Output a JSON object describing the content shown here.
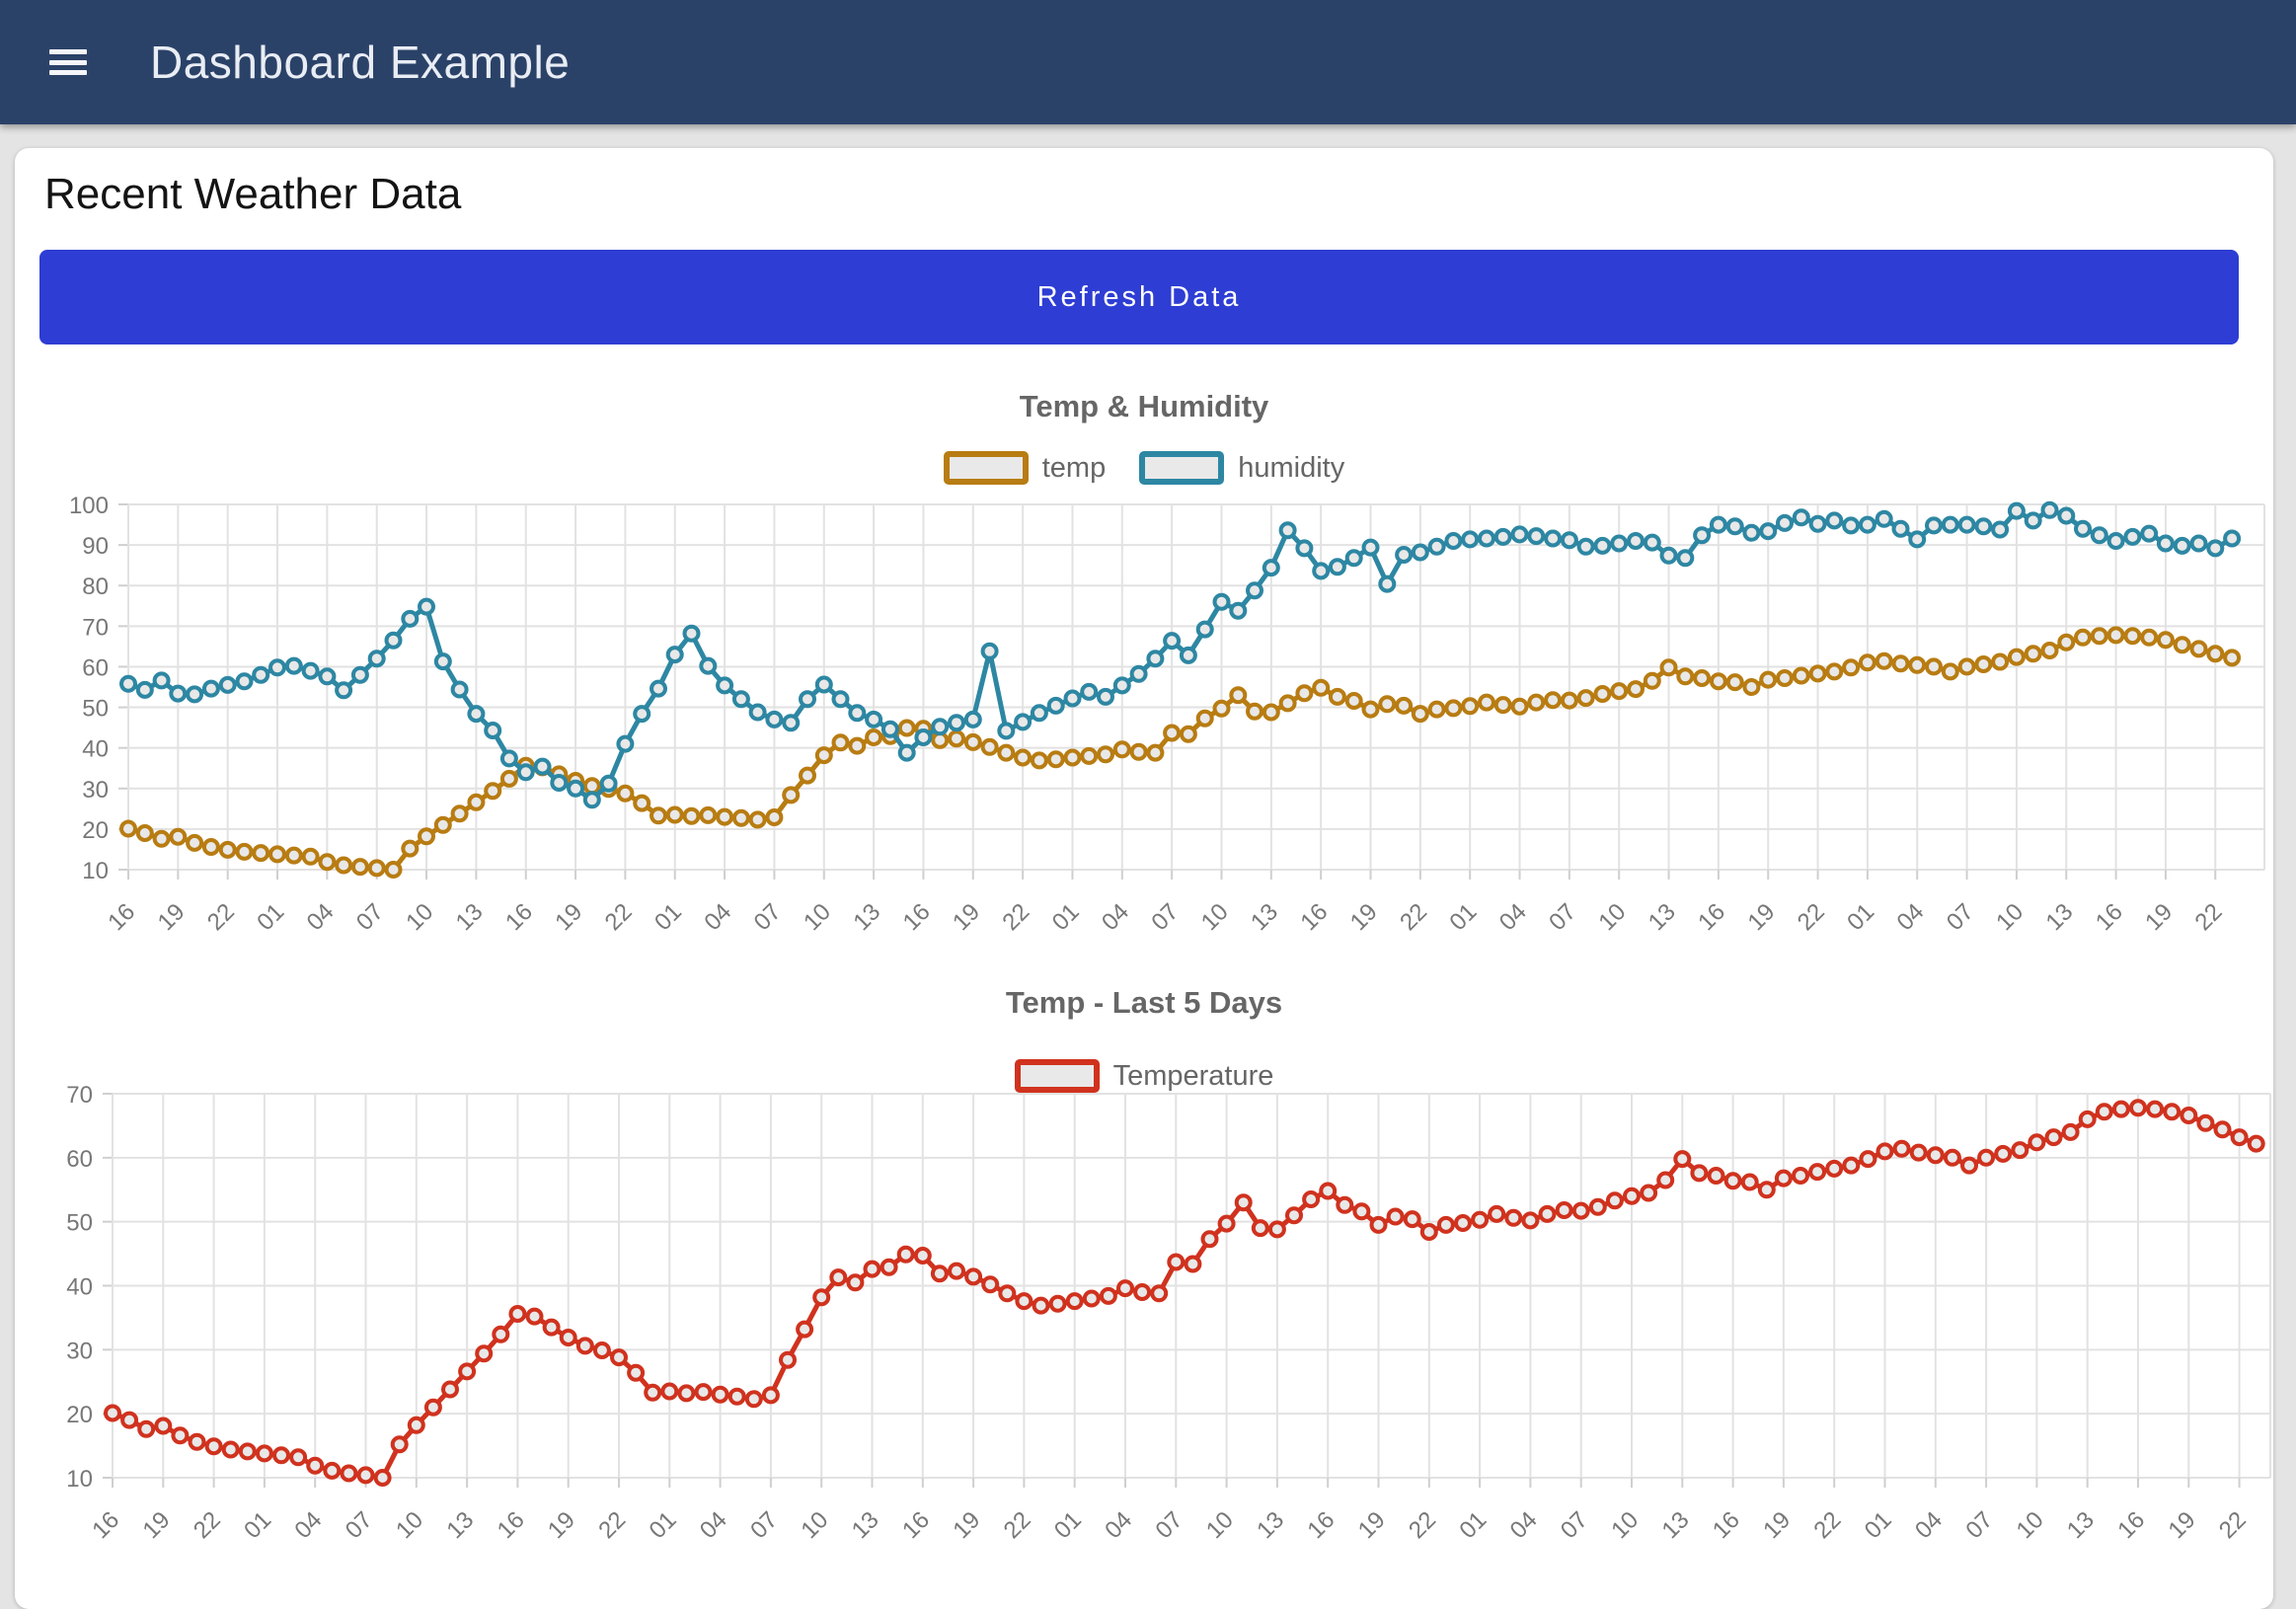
{
  "header": {
    "title": "Dashboard Example",
    "menu_icon": "hamburger-icon"
  },
  "card": {
    "heading": "Recent Weather Data",
    "refresh_button_label": "Refresh Data"
  },
  "colors": {
    "header_bg": "#2b4268",
    "page_bg": "#e4e4e4",
    "card_bg": "#ffffff",
    "button_bg": "#2e3dd3",
    "chart_title_text": "#666666",
    "tick_text": "#777777",
    "grid": "#e2e2e2",
    "marker_fill": "#e8e8e8",
    "temp_color": "#b87c12",
    "humidity_color": "#2d87a3",
    "temperature_color": "#d0321e"
  },
  "chart_data": [
    {
      "type": "line",
      "title": "Temp & Humidity",
      "legend_position": "top",
      "grid": true,
      "xlabel": "",
      "ylabel": "",
      "ylim": [
        10,
        100
      ],
      "ytick_step": 10,
      "y_tick_labels": [
        "100",
        "90",
        "80",
        "70",
        "60",
        "50",
        "40",
        "30",
        "20",
        "10"
      ],
      "points_per_tick": 3,
      "x_tick_labels": [
        "16",
        "19",
        "22",
        "01",
        "04",
        "07",
        "10",
        "13",
        "16",
        "19",
        "22",
        "01",
        "04",
        "07",
        "10",
        "13",
        "16",
        "19",
        "22",
        "01",
        "04",
        "07",
        "10",
        "13",
        "16",
        "19",
        "22",
        "01",
        "04",
        "07",
        "10",
        "13",
        "16",
        "19",
        "22",
        "01",
        "04",
        "07",
        "10",
        "13",
        "16",
        "19",
        "22"
      ],
      "series": [
        {
          "name": "temp",
          "color": "#b87c12",
          "values": [
            20.1,
            19.0,
            17.6,
            18.1,
            16.6,
            15.6,
            14.9,
            14.4,
            14.1,
            13.8,
            13.5,
            13.2,
            11.9,
            11.1,
            10.7,
            10.4,
            10.0,
            15.2,
            18.2,
            21.0,
            23.8,
            26.6,
            29.4,
            32.4,
            35.6,
            35.2,
            33.5,
            31.9,
            30.6,
            29.9,
            28.8,
            26.4,
            23.3,
            23.5,
            23.2,
            23.4,
            23.0,
            22.7,
            22.3,
            22.9,
            28.4,
            33.2,
            38.2,
            41.3,
            40.5,
            42.6,
            42.9,
            44.9,
            44.7,
            41.9,
            42.3,
            41.4,
            40.2,
            38.8,
            37.6,
            36.9,
            37.2,
            37.6,
            38.0,
            38.4,
            39.6,
            39.0,
            38.8,
            43.7,
            43.4,
            47.3,
            49.7,
            53.0,
            49.0,
            48.8,
            51.0,
            53.5,
            54.8,
            52.6,
            51.6,
            49.5,
            50.8,
            50.4,
            48.4,
            49.5,
            49.8,
            50.3,
            51.2,
            50.6,
            50.2,
            51.2,
            51.8,
            51.7,
            52.3,
            53.3,
            54.0,
            54.5,
            56.5,
            59.8,
            57.6,
            57.2,
            56.4,
            56.2,
            55.0,
            56.8,
            57.2,
            57.8,
            58.3,
            58.8,
            59.8,
            61.0,
            61.4,
            60.8,
            60.4,
            60.0,
            58.8,
            60.0,
            60.6,
            61.2,
            62.4,
            63.2,
            64.0,
            66.0,
            67.2,
            67.6,
            67.8,
            67.6,
            67.2,
            66.6,
            65.4,
            64.4,
            63.2,
            62.2
          ]
        },
        {
          "name": "humidity",
          "color": "#2d87a3",
          "values": [
            55.8,
            54.3,
            56.6,
            53.4,
            53.2,
            54.6,
            55.5,
            56.4,
            58.0,
            59.8,
            60.2,
            59.0,
            57.6,
            54.2,
            58.0,
            62.0,
            66.5,
            71.8,
            74.8,
            61.3,
            54.4,
            48.4,
            44.3,
            37.4,
            34.0,
            35.4,
            31.4,
            30.0,
            27.2,
            31.2,
            41.0,
            48.4,
            54.6,
            63.0,
            68.2,
            60.2,
            55.4,
            52.0,
            48.8,
            47.0,
            46.2,
            52.0,
            55.6,
            52.0,
            48.6,
            47.0,
            44.6,
            38.8,
            42.6,
            45.2,
            46.2,
            47.0,
            63.8,
            44.2,
            46.4,
            48.6,
            50.4,
            52.2,
            53.8,
            52.6,
            55.4,
            58.2,
            62.0,
            66.4,
            62.8,
            69.2,
            76.0,
            73.8,
            78.8,
            84.4,
            93.6,
            89.2,
            83.6,
            84.6,
            86.8,
            89.4,
            80.4,
            87.6,
            88.2,
            89.6,
            91.0,
            91.4,
            91.6,
            92.0,
            92.6,
            92.2,
            91.6,
            91.2,
            89.6,
            89.8,
            90.4,
            91.0,
            90.6,
            87.4,
            86.8,
            92.4,
            95.0,
            94.6,
            93.0,
            93.4,
            95.4,
            96.8,
            95.2,
            96.0,
            94.8,
            95.0,
            96.4,
            94.0,
            91.4,
            94.8,
            95.0,
            95.0,
            94.6,
            93.8,
            98.4,
            96.0,
            98.6,
            97.2,
            94.0,
            92.4,
            91.0,
            92.0,
            92.8,
            90.4,
            89.8,
            90.4,
            89.2,
            91.6
          ]
        }
      ]
    },
    {
      "type": "line",
      "title": "Temp - Last 5 Days",
      "legend_position": "top",
      "grid": true,
      "xlabel": "",
      "ylabel": "",
      "ylim": [
        10,
        70
      ],
      "ytick_step": 10,
      "y_tick_labels": [
        "70",
        "60",
        "50",
        "40",
        "30",
        "20",
        "10"
      ],
      "points_per_tick": 3,
      "x_tick_labels": [
        "16",
        "19",
        "22",
        "01",
        "04",
        "07",
        "10",
        "13",
        "16",
        "19",
        "22",
        "01",
        "04",
        "07",
        "10",
        "13",
        "16",
        "19",
        "22",
        "01",
        "04",
        "07",
        "10",
        "13",
        "16",
        "19",
        "22",
        "01",
        "04",
        "07",
        "10",
        "13",
        "16",
        "19",
        "22",
        "01",
        "04",
        "07",
        "10",
        "13",
        "16",
        "19",
        "22"
      ],
      "series": [
        {
          "name": "Temperature",
          "color": "#d0321e",
          "values": [
            20.1,
            19.0,
            17.6,
            18.1,
            16.6,
            15.6,
            14.9,
            14.4,
            14.1,
            13.8,
            13.5,
            13.2,
            11.9,
            11.1,
            10.7,
            10.4,
            10.0,
            15.2,
            18.2,
            21.0,
            23.8,
            26.6,
            29.4,
            32.4,
            35.6,
            35.2,
            33.5,
            31.9,
            30.6,
            29.9,
            28.8,
            26.4,
            23.3,
            23.5,
            23.2,
            23.4,
            23.0,
            22.7,
            22.3,
            22.9,
            28.4,
            33.2,
            38.2,
            41.3,
            40.5,
            42.6,
            42.9,
            44.9,
            44.7,
            41.9,
            42.3,
            41.4,
            40.2,
            38.8,
            37.6,
            36.9,
            37.2,
            37.6,
            38.0,
            38.4,
            39.6,
            39.0,
            38.8,
            43.7,
            43.4,
            47.3,
            49.7,
            53.0,
            49.0,
            48.8,
            51.0,
            53.5,
            54.8,
            52.6,
            51.6,
            49.5,
            50.8,
            50.4,
            48.4,
            49.5,
            49.8,
            50.3,
            51.2,
            50.6,
            50.2,
            51.2,
            51.8,
            51.7,
            52.3,
            53.3,
            54.0,
            54.5,
            56.5,
            59.8,
            57.6,
            57.2,
            56.4,
            56.2,
            55.0,
            56.8,
            57.2,
            57.8,
            58.3,
            58.8,
            59.8,
            61.0,
            61.4,
            60.8,
            60.4,
            60.0,
            58.8,
            60.0,
            60.6,
            61.2,
            62.4,
            63.2,
            64.0,
            66.0,
            67.2,
            67.6,
            67.8,
            67.6,
            67.2,
            66.6,
            65.4,
            64.4,
            63.2,
            62.2
          ]
        }
      ]
    }
  ]
}
